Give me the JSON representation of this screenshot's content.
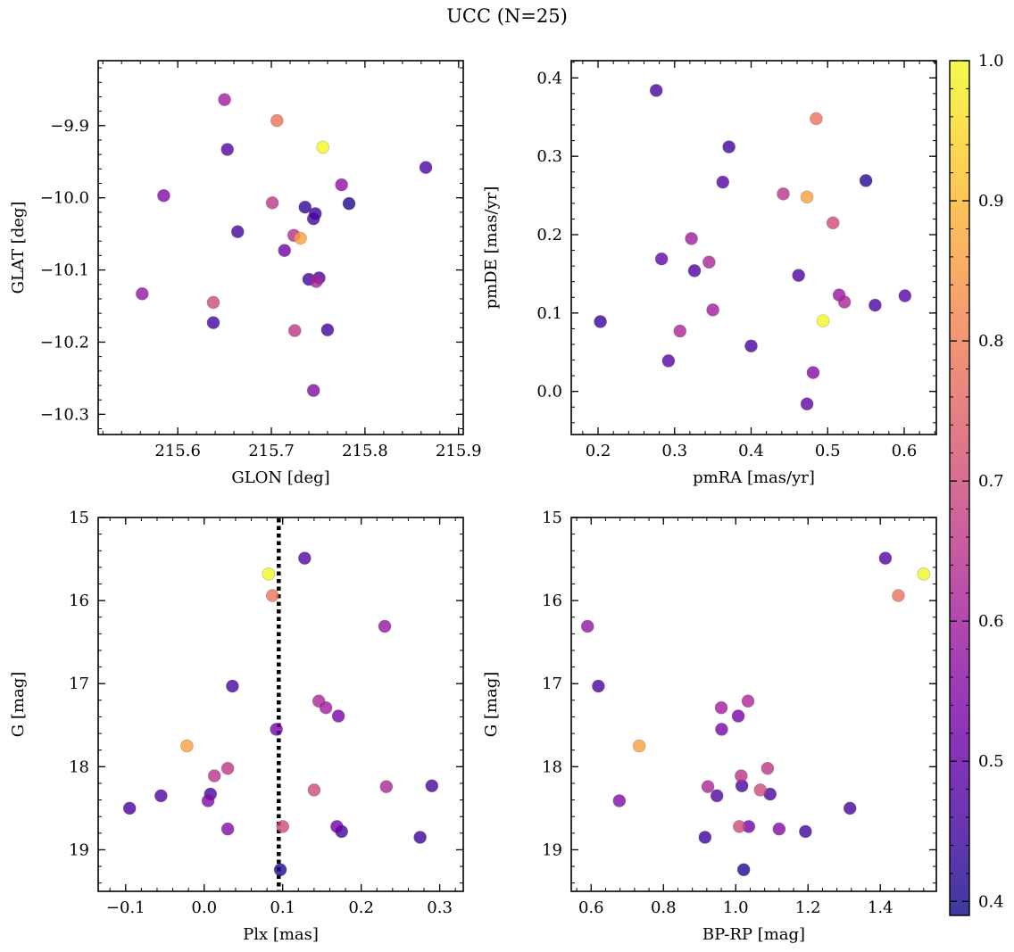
{
  "figure": {
    "title": "UCC (N=25)"
  },
  "colormap": {
    "name": "plasma",
    "stops": [
      "#0d0887",
      "#46039f",
      "#7201a8",
      "#9c179e",
      "#bd3786",
      "#d8576b",
      "#ed7953",
      "#fb9f3a",
      "#fdca26",
      "#f0f921"
    ],
    "alpha": 0.8,
    "vmin": 0.39,
    "vmax": 1.0,
    "ticks": [
      "0.4",
      "0.5",
      "0.6",
      "0.7",
      "0.8",
      "0.9",
      "1.0"
    ],
    "tick_values": [
      0.4,
      0.5,
      0.6,
      0.7,
      0.8,
      0.9,
      1.0
    ]
  },
  "chart_data": [
    {
      "type": "scatter",
      "xlabel": "GLON [deg]",
      "ylabel": "GLAT [deg]",
      "xlim": [
        215.515,
        215.905
      ],
      "ylim": [
        -10.328,
        -9.81
      ],
      "xticks": [
        215.6,
        215.7,
        215.8,
        215.9
      ],
      "xtick_labels": [
        "215.6",
        "215.7",
        "215.8",
        "215.9"
      ],
      "yticks": [
        -9.9,
        -10.0,
        -10.1,
        -10.2,
        -10.3
      ],
      "ytick_labels": [
        "−9.9",
        "−10.0",
        "−10.1",
        "−10.2",
        "−10.3"
      ],
      "points": [
        {
          "x": 215.585,
          "y": -9.997,
          "c": 0.55
        },
        {
          "x": 215.562,
          "y": -10.133,
          "c": 0.58
        },
        {
          "x": 215.638,
          "y": -10.145,
          "c": 0.7
        },
        {
          "x": 215.638,
          "y": -10.173,
          "c": 0.45
        },
        {
          "x": 215.65,
          "y": -9.864,
          "c": 0.6
        },
        {
          "x": 215.653,
          "y": -9.933,
          "c": 0.48
        },
        {
          "x": 215.664,
          "y": -10.047,
          "c": 0.46
        },
        {
          "x": 215.701,
          "y": -10.007,
          "c": 0.66
        },
        {
          "x": 215.706,
          "y": -9.893,
          "c": 0.78
        },
        {
          "x": 215.714,
          "y": -10.073,
          "c": 0.52
        },
        {
          "x": 215.724,
          "y": -10.052,
          "c": 0.64
        },
        {
          "x": 215.731,
          "y": -10.056,
          "c": 0.86
        },
        {
          "x": 215.725,
          "y": -10.184,
          "c": 0.66
        },
        {
          "x": 215.736,
          "y": -10.013,
          "c": 0.43
        },
        {
          "x": 215.74,
          "y": -10.113,
          "c": 0.45
        },
        {
          "x": 215.745,
          "y": -10.029,
          "c": 0.46
        },
        {
          "x": 215.747,
          "y": -10.022,
          "c": 0.44
        },
        {
          "x": 215.748,
          "y": -10.116,
          "c": 0.62
        },
        {
          "x": 215.751,
          "y": -10.111,
          "c": 0.47
        },
        {
          "x": 215.745,
          "y": -10.267,
          "c": 0.55
        },
        {
          "x": 215.755,
          "y": -9.93,
          "c": 1.0
        },
        {
          "x": 215.76,
          "y": -10.183,
          "c": 0.45
        },
        {
          "x": 215.775,
          "y": -9.982,
          "c": 0.57
        },
        {
          "x": 215.783,
          "y": -10.008,
          "c": 0.41
        },
        {
          "x": 215.865,
          "y": -9.958,
          "c": 0.47
        }
      ]
    },
    {
      "type": "scatter",
      "xlabel": "pmRA [mas/yr]",
      "ylabel": "pmDE [mas/yr]",
      "xlim": [
        0.165,
        0.642
      ],
      "ylim": [
        -0.055,
        0.422
      ],
      "xticks": [
        0.2,
        0.3,
        0.4,
        0.5,
        0.6
      ],
      "xtick_labels": [
        "0.2",
        "0.3",
        "0.4",
        "0.5",
        "0.6"
      ],
      "yticks": [
        0.0,
        0.1,
        0.2,
        0.3,
        0.4
      ],
      "ytick_labels": [
        "0.0",
        "0.1",
        "0.2",
        "0.3",
        "0.4"
      ],
      "points": [
        {
          "x": 0.203,
          "y": 0.089,
          "c": 0.44
        },
        {
          "x": 0.276,
          "y": 0.384,
          "c": 0.46
        },
        {
          "x": 0.283,
          "y": 0.169,
          "c": 0.5
        },
        {
          "x": 0.292,
          "y": 0.039,
          "c": 0.48
        },
        {
          "x": 0.307,
          "y": 0.077,
          "c": 0.62
        },
        {
          "x": 0.322,
          "y": 0.195,
          "c": 0.6
        },
        {
          "x": 0.326,
          "y": 0.154,
          "c": 0.47
        },
        {
          "x": 0.345,
          "y": 0.165,
          "c": 0.62
        },
        {
          "x": 0.35,
          "y": 0.104,
          "c": 0.6
        },
        {
          "x": 0.363,
          "y": 0.267,
          "c": 0.48
        },
        {
          "x": 0.371,
          "y": 0.312,
          "c": 0.45
        },
        {
          "x": 0.4,
          "y": 0.058,
          "c": 0.46
        },
        {
          "x": 0.442,
          "y": 0.252,
          "c": 0.65
        },
        {
          "x": 0.462,
          "y": 0.148,
          "c": 0.47
        },
        {
          "x": 0.473,
          "y": 0.248,
          "c": 0.86
        },
        {
          "x": 0.473,
          "y": -0.016,
          "c": 0.5
        },
        {
          "x": 0.481,
          "y": 0.024,
          "c": 0.55
        },
        {
          "x": 0.485,
          "y": 0.348,
          "c": 0.78
        },
        {
          "x": 0.494,
          "y": 0.09,
          "c": 1.0
        },
        {
          "x": 0.507,
          "y": 0.215,
          "c": 0.7
        },
        {
          "x": 0.515,
          "y": 0.123,
          "c": 0.58
        },
        {
          "x": 0.522,
          "y": 0.114,
          "c": 0.62
        },
        {
          "x": 0.55,
          "y": 0.269,
          "c": 0.42
        },
        {
          "x": 0.562,
          "y": 0.11,
          "c": 0.46
        },
        {
          "x": 0.601,
          "y": 0.122,
          "c": 0.48
        }
      ]
    },
    {
      "type": "scatter",
      "xlabel": "Plx [mas]",
      "ylabel": "G [mag]",
      "xlim": [
        -0.135,
        0.33
      ],
      "ylim": [
        19.5,
        15.0
      ],
      "xticks": [
        -0.1,
        0.0,
        0.1,
        0.2,
        0.3
      ],
      "xtick_labels": [
        "−0.1",
        "0.0",
        "0.1",
        "0.2",
        "0.3"
      ],
      "yticks": [
        15,
        16,
        17,
        18,
        19
      ],
      "ytick_labels": [
        "15",
        "16",
        "17",
        "18",
        "19"
      ],
      "vline": {
        "x": 0.095,
        "style": "dotted",
        "color": "#000000"
      },
      "points": [
        {
          "x": -0.095,
          "y": 18.5,
          "c": 0.46
        },
        {
          "x": -0.055,
          "y": 18.35,
          "c": 0.47
        },
        {
          "x": -0.022,
          "y": 17.75,
          "c": 0.86
        },
        {
          "x": 0.005,
          "y": 18.41,
          "c": 0.55
        },
        {
          "x": 0.008,
          "y": 18.33,
          "c": 0.46
        },
        {
          "x": 0.013,
          "y": 18.11,
          "c": 0.65
        },
        {
          "x": 0.03,
          "y": 18.02,
          "c": 0.66
        },
        {
          "x": 0.03,
          "y": 18.75,
          "c": 0.55
        },
        {
          "x": 0.036,
          "y": 17.03,
          "c": 0.46
        },
        {
          "x": 0.082,
          "y": 15.68,
          "c": 1.0
        },
        {
          "x": 0.087,
          "y": 15.94,
          "c": 0.78
        },
        {
          "x": 0.092,
          "y": 17.55,
          "c": 0.53
        },
        {
          "x": 0.097,
          "y": 19.24,
          "c": 0.41
        },
        {
          "x": 0.1,
          "y": 18.72,
          "c": 0.7
        },
        {
          "x": 0.128,
          "y": 15.49,
          "c": 0.48
        },
        {
          "x": 0.14,
          "y": 18.28,
          "c": 0.7
        },
        {
          "x": 0.146,
          "y": 17.21,
          "c": 0.62
        },
        {
          "x": 0.155,
          "y": 17.29,
          "c": 0.6
        },
        {
          "x": 0.169,
          "y": 18.72,
          "c": 0.52
        },
        {
          "x": 0.171,
          "y": 17.39,
          "c": 0.53
        },
        {
          "x": 0.175,
          "y": 18.78,
          "c": 0.45
        },
        {
          "x": 0.23,
          "y": 16.31,
          "c": 0.58
        },
        {
          "x": 0.232,
          "y": 18.24,
          "c": 0.62
        },
        {
          "x": 0.275,
          "y": 18.85,
          "c": 0.44
        },
        {
          "x": 0.29,
          "y": 18.23,
          "c": 0.46
        }
      ]
    },
    {
      "type": "scatter",
      "xlabel": "BP-RP [mag]",
      "ylabel": "G [mag]",
      "xlim": [
        0.545,
        1.555
      ],
      "ylim": [
        19.5,
        15.0
      ],
      "xticks": [
        0.6,
        0.8,
        1.0,
        1.2,
        1.4
      ],
      "xtick_labels": [
        "0.6",
        "0.8",
        "1.0",
        "1.2",
        "1.4"
      ],
      "yticks": [
        15,
        16,
        17,
        18,
        19
      ],
      "ytick_labels": [
        "15",
        "16",
        "17",
        "18",
        "19"
      ],
      "points": [
        {
          "x": 0.59,
          "y": 16.31,
          "c": 0.58
        },
        {
          "x": 0.62,
          "y": 17.03,
          "c": 0.46
        },
        {
          "x": 0.678,
          "y": 18.41,
          "c": 0.55
        },
        {
          "x": 0.733,
          "y": 17.75,
          "c": 0.86
        },
        {
          "x": 0.915,
          "y": 18.85,
          "c": 0.44
        },
        {
          "x": 0.923,
          "y": 18.24,
          "c": 0.62
        },
        {
          "x": 0.948,
          "y": 18.35,
          "c": 0.47
        },
        {
          "x": 0.96,
          "y": 17.29,
          "c": 0.6
        },
        {
          "x": 0.961,
          "y": 17.55,
          "c": 0.53
        },
        {
          "x": 1.007,
          "y": 17.39,
          "c": 0.53
        },
        {
          "x": 1.01,
          "y": 18.72,
          "c": 0.7
        },
        {
          "x": 1.015,
          "y": 18.11,
          "c": 0.65
        },
        {
          "x": 1.017,
          "y": 18.23,
          "c": 0.46
        },
        {
          "x": 1.022,
          "y": 19.24,
          "c": 0.41
        },
        {
          "x": 1.034,
          "y": 17.21,
          "c": 0.62
        },
        {
          "x": 1.036,
          "y": 18.72,
          "c": 0.52
        },
        {
          "x": 1.068,
          "y": 18.28,
          "c": 0.7
        },
        {
          "x": 1.088,
          "y": 18.02,
          "c": 0.66
        },
        {
          "x": 1.095,
          "y": 18.33,
          "c": 0.46
        },
        {
          "x": 1.12,
          "y": 18.75,
          "c": 0.55
        },
        {
          "x": 1.193,
          "y": 18.78,
          "c": 0.45
        },
        {
          "x": 1.316,
          "y": 18.5,
          "c": 0.46
        },
        {
          "x": 1.414,
          "y": 15.49,
          "c": 0.48
        },
        {
          "x": 1.45,
          "y": 15.94,
          "c": 0.78
        },
        {
          "x": 1.52,
          "y": 15.68,
          "c": 1.0
        }
      ]
    }
  ]
}
